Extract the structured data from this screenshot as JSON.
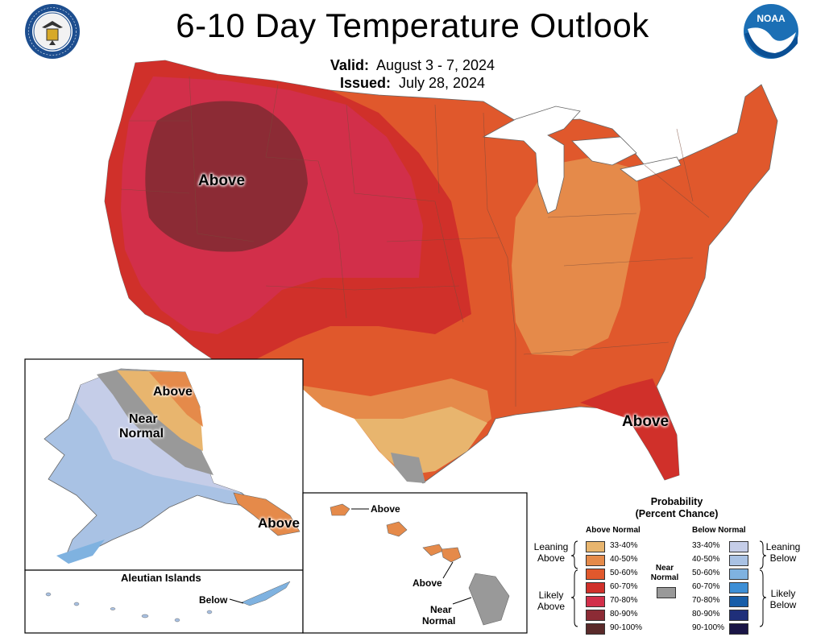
{
  "header": {
    "title": "6-10 Day Temperature Outlook",
    "valid_label": "Valid:",
    "valid_value": "August 3 - 7, 2024",
    "issued_label": "Issued:",
    "issued_value": "July 28, 2024",
    "left_logo_icon": "department-of-commerce-seal-icon",
    "left_logo_text": "DEPARTMENT OF COMMERCE · UNITED STATES OF AMERICA",
    "right_logo_icon": "noaa-logo-icon",
    "right_logo_text": "NOAA"
  },
  "map_labels": {
    "conus_west": "Above",
    "conus_florida": "Above",
    "alaska_north": "Above",
    "alaska_near_normal_1": "Near",
    "alaska_near_normal_2": "Normal",
    "alaska_southeast": "Above",
    "aleutian_title": "Aleutian Islands",
    "aleutian_below": "Below",
    "hawaii_above_1": "Above",
    "hawaii_above_2": "Above",
    "hawaii_near_1": "Near",
    "hawaii_near_2": "Normal"
  },
  "legend": {
    "title_1": "Probability",
    "title_2": "(Percent Chance)",
    "above_head": "Above Normal",
    "below_head": "Below Normal",
    "near_1": "Near",
    "near_2": "Normal",
    "leaning_above_1": "Leaning",
    "leaning_above_2": "Above",
    "likely_above_1": "Likely",
    "likely_above_2": "Above",
    "leaning_below_1": "Leaning",
    "leaning_below_2": "Below",
    "likely_below_1": "Likely",
    "likely_below_2": "Below",
    "above_rows": [
      {
        "label": "33-40%",
        "color": "#e8b56e"
      },
      {
        "label": "40-50%",
        "color": "#e58a4a"
      },
      {
        "label": "50-60%",
        "color": "#e0582c"
      },
      {
        "label": "60-70%",
        "color": "#d0302a"
      },
      {
        "label": "70-80%",
        "color": "#d22f4a"
      },
      {
        "label": "80-90%",
        "color": "#8c2b35"
      },
      {
        "label": "90-100%",
        "color": "#5a2a2a"
      }
    ],
    "below_rows": [
      {
        "label": "33-40%",
        "color": "#c5cde8"
      },
      {
        "label": "40-50%",
        "color": "#a9c2e4"
      },
      {
        "label": "50-60%",
        "color": "#7fb2e0"
      },
      {
        "label": "60-70%",
        "color": "#3d8fd6"
      },
      {
        "label": "70-80%",
        "color": "#175da8"
      },
      {
        "label": "80-90%",
        "color": "#1f2f7a"
      },
      {
        "label": "90-100%",
        "color": "#1a1546"
      }
    ],
    "near_color": "#999999"
  }
}
